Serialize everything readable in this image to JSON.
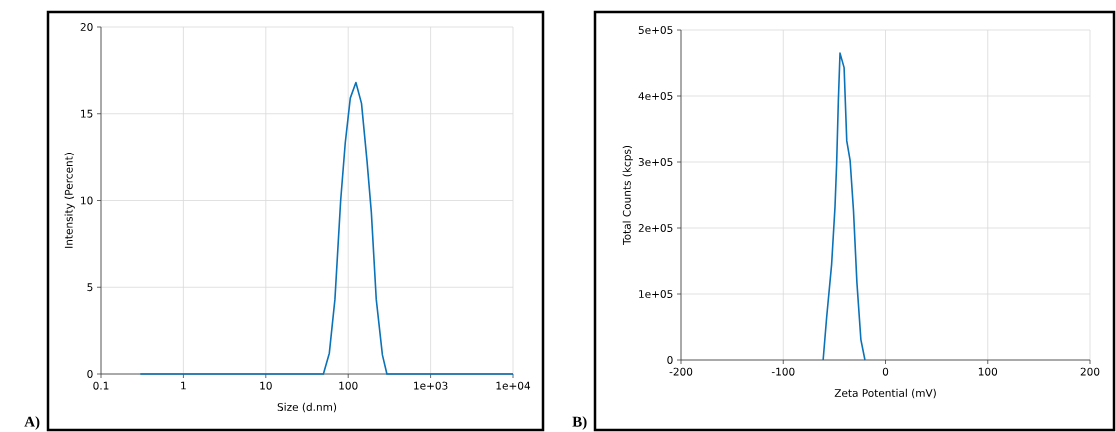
{
  "chart_data": [
    {
      "type": "line",
      "xlabel": "Size (d.nm)",
      "ylabel": "Intensity (Percent)",
      "annotations": [
        "A)"
      ],
      "log": "x",
      "grid": true,
      "xlim": [
        0.1,
        10000
      ],
      "ylim": [
        0,
        20
      ],
      "xticks": [
        0.1,
        1,
        10,
        100,
        {
          "value": 1000,
          "label": "1e+03"
        },
        {
          "value": 10000,
          "label": "1e+04"
        }
      ],
      "yticks": [
        0,
        5,
        10,
        15,
        20
      ],
      "x": [
        0.3,
        50,
        59,
        69,
        81,
        92,
        106,
        124,
        145,
        169,
        191,
        219,
        260,
        295,
        10000
      ],
      "series": [
        {
          "color": "#0b72b8",
          "values": [
            0,
            0,
            1.2,
            4.3,
            10.0,
            13.3,
            15.9,
            16.8,
            15.6,
            12.3,
            9.3,
            4.3,
            1.1,
            0,
            0
          ]
        }
      ]
    },
    {
      "type": "line",
      "xlabel": "Zeta Potential (mV)",
      "ylabel": "Total Counts (kcps)",
      "annotations": [
        "B)"
      ],
      "grid": true,
      "xlim": [
        -200,
        200
      ],
      "ylim": [
        0,
        500000
      ],
      "xticks": [
        -200,
        -100,
        0,
        100,
        200
      ],
      "yticks": [
        0,
        {
          "value": 100000,
          "label": "1e+05"
        },
        {
          "value": 200000,
          "label": "2e+05"
        },
        {
          "value": 300000,
          "label": "3e+05"
        },
        {
          "value": 400000,
          "label": "4e+05"
        },
        {
          "value": 500000,
          "label": "5e+05"
        }
      ],
      "x": [
        -61,
        -57.6,
        -52.7,
        -49.4,
        -47.8,
        -46.1,
        -44.5,
        -40.5,
        -37.9,
        -34.6,
        -31.3,
        -28,
        -24.1,
        -20.1
      ],
      "series": [
        {
          "color": "#0b72b8",
          "values": [
            0,
            64000,
            145000,
            232000,
            297000,
            394000,
            465000,
            443000,
            332000,
            302000,
            226000,
            118000,
            31000,
            0
          ]
        }
      ]
    }
  ]
}
